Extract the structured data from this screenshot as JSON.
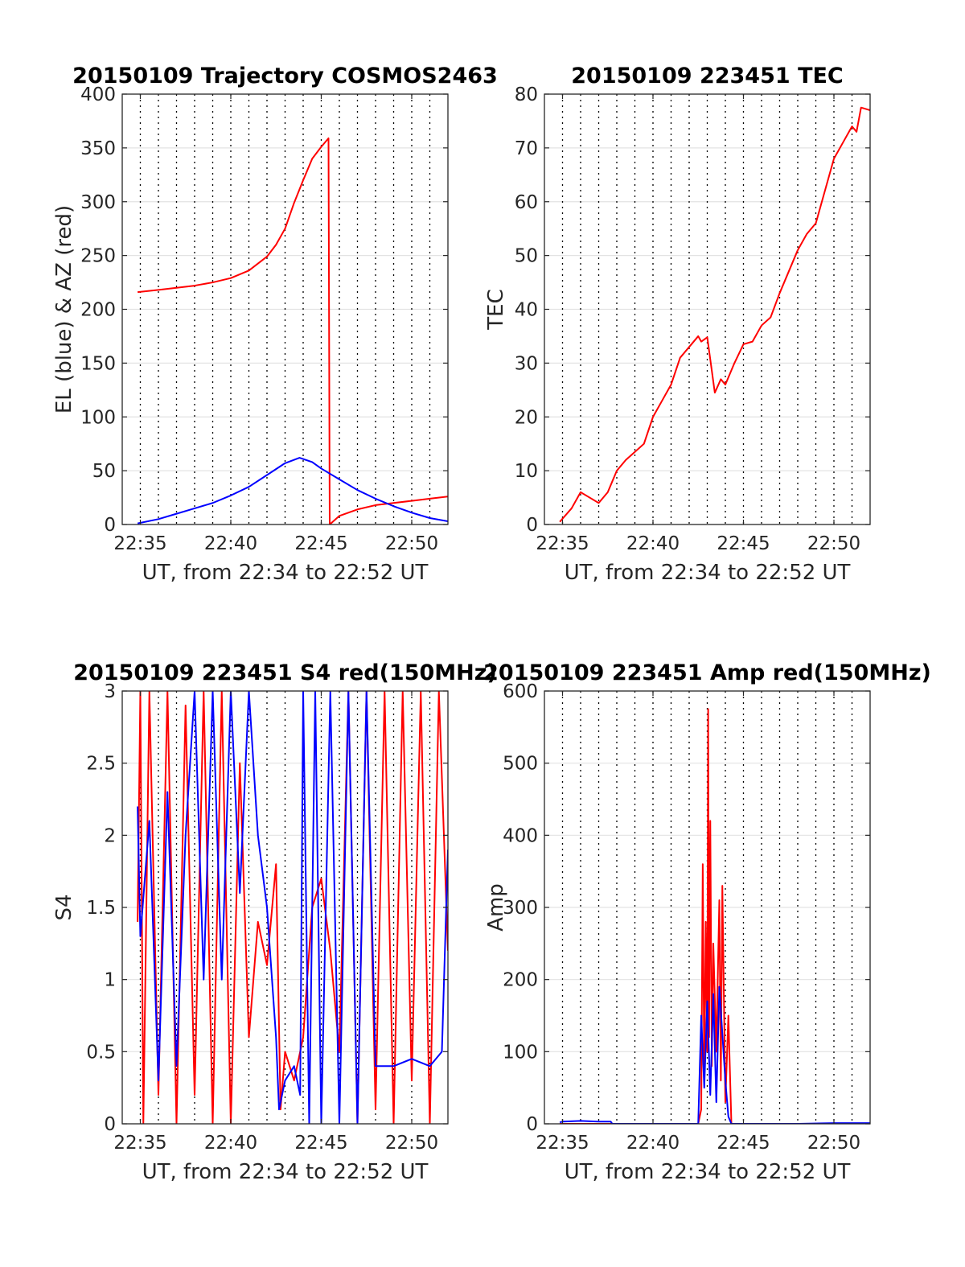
{
  "colors": {
    "red": "#ff0000",
    "blue": "#0000ff",
    "axis": "#262626",
    "grid": "#e3e3e3"
  },
  "chart_data": [
    {
      "type": "line",
      "title": "20150109 Trajectory COSMOS2463",
      "xlabel": "UT, from 22:34 to 22:52 UT",
      "ylabel": "EL (blue) & AZ (red)",
      "xlim": [
        "22:34",
        "22:52"
      ],
      "ylim": [
        0,
        400
      ],
      "xticks": [
        "22:35",
        "22:40",
        "22:45",
        "22:50"
      ],
      "yticks": [
        0,
        50,
        100,
        150,
        200,
        250,
        300,
        350,
        400
      ],
      "grid": true,
      "series": [
        {
          "color": "#ff0000",
          "points": [
            [
              "22:34:51",
              216
            ],
            [
              "22:36",
              218
            ],
            [
              "22:37",
              220
            ],
            [
              "22:38",
              222
            ],
            [
              "22:39",
              225
            ],
            [
              "22:40",
              229
            ],
            [
              "22:41",
              236
            ],
            [
              "22:42",
              249
            ],
            [
              "22:42:30",
              260
            ],
            [
              "22:43",
              275
            ],
            [
              "22:43:30",
              299
            ],
            [
              "22:44",
              320
            ],
            [
              "22:44:30",
              340
            ],
            [
              "22:45",
              351
            ],
            [
              "22:45:24",
              359
            ],
            [
              "22:45:28",
              0
            ],
            [
              "22:46",
              8
            ],
            [
              "22:47",
              14
            ],
            [
              "22:48",
              18
            ],
            [
              "22:49",
              20
            ],
            [
              "22:50",
              22
            ],
            [
              "22:51",
              24
            ],
            [
              "22:52",
              26
            ]
          ]
        },
        {
          "color": "#0000ff",
          "points": [
            [
              "22:34:51",
              1
            ],
            [
              "22:36",
              5
            ],
            [
              "22:37",
              10
            ],
            [
              "22:38",
              15
            ],
            [
              "22:39",
              20
            ],
            [
              "22:40",
              27
            ],
            [
              "22:41",
              35
            ],
            [
              "22:42",
              46
            ],
            [
              "22:43",
              57
            ],
            [
              "22:43:48",
              62
            ],
            [
              "22:44:30",
              58
            ],
            [
              "22:45",
              52
            ],
            [
              "22:46",
              42
            ],
            [
              "22:47",
              32
            ],
            [
              "22:48",
              24
            ],
            [
              "22:49",
              17
            ],
            [
              "22:50",
              11
            ],
            [
              "22:51",
              6
            ],
            [
              "22:52",
              3
            ]
          ]
        }
      ]
    },
    {
      "type": "line",
      "title": "20150109 223451 TEC",
      "xlabel": "UT, from 22:34 to 22:52 UT",
      "ylabel": "TEC",
      "xlim": [
        "22:34",
        "22:52"
      ],
      "ylim": [
        0,
        80
      ],
      "xticks": [
        "22:35",
        "22:40",
        "22:45",
        "22:50"
      ],
      "yticks": [
        0,
        10,
        20,
        30,
        40,
        50,
        60,
        70,
        80
      ],
      "grid": true,
      "series": [
        {
          "color": "#ff0000",
          "points": [
            [
              "22:34:51",
              0.5
            ],
            [
              "22:35:30",
              3
            ],
            [
              "22:36",
              6
            ],
            [
              "22:36:30",
              5
            ],
            [
              "22:37",
              4
            ],
            [
              "22:37:30",
              6
            ],
            [
              "22:38",
              10
            ],
            [
              "22:38:30",
              12
            ],
            [
              "22:39",
              13.5
            ],
            [
              "22:39:30",
              15
            ],
            [
              "22:40",
              20
            ],
            [
              "22:40:30",
              23
            ],
            [
              "22:41",
              26
            ],
            [
              "22:41:30",
              31
            ],
            [
              "22:42",
              33
            ],
            [
              "22:42:30",
              35
            ],
            [
              "22:42:40",
              34
            ],
            [
              "22:43",
              34.8
            ],
            [
              "22:43:25",
              24.5
            ],
            [
              "22:43:45",
              27
            ],
            [
              "22:44",
              26
            ],
            [
              "22:44:30",
              30
            ],
            [
              "22:45",
              33.5
            ],
            [
              "22:45:30",
              34
            ],
            [
              "22:46",
              37
            ],
            [
              "22:46:30",
              38.5
            ],
            [
              "22:47",
              43
            ],
            [
              "22:47:30",
              47
            ],
            [
              "22:48",
              51
            ],
            [
              "22:48:30",
              54
            ],
            [
              "22:49",
              56
            ],
            [
              "22:49:30",
              62
            ],
            [
              "22:50",
              68
            ],
            [
              "22:50:30",
              71
            ],
            [
              "22:51",
              74
            ],
            [
              "22:51:15",
              73
            ],
            [
              "22:51:30",
              77.5
            ],
            [
              "22:52",
              77
            ]
          ]
        }
      ]
    },
    {
      "type": "line",
      "title": "20150109 223451 S4 red(150MHz)",
      "xlabel": "UT, from 22:34 to 22:52 UT",
      "ylabel": "S4",
      "xlim": [
        "22:34",
        "22:52"
      ],
      "ylim": [
        0,
        3
      ],
      "xticks": [
        "22:35",
        "22:40",
        "22:45",
        "22:50"
      ],
      "yticks": [
        0,
        0.5,
        1,
        1.5,
        2,
        2.5,
        3
      ],
      "grid": true,
      "series": [
        {
          "color": "#ff0000",
          "points": [
            [
              "22:34:51",
              1.4
            ],
            [
              "22:35:00",
              3
            ],
            [
              "22:35:10",
              0
            ],
            [
              "22:35:30",
              3
            ],
            [
              "22:36:00",
              0.2
            ],
            [
              "22:36:30",
              3
            ],
            [
              "22:37:00",
              0
            ],
            [
              "22:37:30",
              2.9
            ],
            [
              "22:38:00",
              0.2
            ],
            [
              "22:38:30",
              3
            ],
            [
              "22:39:00",
              0
            ],
            [
              "22:39:30",
              3
            ],
            [
              "22:40:00",
              0
            ],
            [
              "22:40:30",
              2.5
            ],
            [
              "22:41:00",
              0.6
            ],
            [
              "22:41:30",
              1.4
            ],
            [
              "22:42:00",
              1.1
            ],
            [
              "22:42:30",
              1.8
            ],
            [
              "22:42:45",
              0.1
            ],
            [
              "22:43:00",
              0.5
            ],
            [
              "22:43:30",
              0.3
            ],
            [
              "22:44:00",
              0.6
            ],
            [
              "22:44:30",
              1.5
            ],
            [
              "22:45:00",
              1.7
            ],
            [
              "22:45:30",
              1.2
            ],
            [
              "22:46:00",
              0.5
            ],
            [
              "22:46:30",
              3
            ],
            [
              "22:47:00",
              0
            ],
            [
              "22:47:30",
              3
            ],
            [
              "22:48:00",
              0.1
            ],
            [
              "22:48:30",
              3
            ],
            [
              "22:49:00",
              0
            ],
            [
              "22:49:30",
              3
            ],
            [
              "22:50:00",
              0.3
            ],
            [
              "22:50:30",
              3
            ],
            [
              "22:51:00",
              0
            ],
            [
              "22:51:30",
              3
            ],
            [
              "22:52:00",
              1.2
            ]
          ]
        },
        {
          "color": "#0000ff",
          "points": [
            [
              "22:34:51",
              2.2
            ],
            [
              "22:35:00",
              1.3
            ],
            [
              "22:35:30",
              2.1
            ],
            [
              "22:36:00",
              0.3
            ],
            [
              "22:36:30",
              2.3
            ],
            [
              "22:37:00",
              0.4
            ],
            [
              "22:37:30",
              2.0
            ],
            [
              "22:38:00",
              3
            ],
            [
              "22:38:30",
              1.0
            ],
            [
              "22:39:00",
              3
            ],
            [
              "22:39:30",
              1.0
            ],
            [
              "22:40:00",
              3
            ],
            [
              "22:40:30",
              1.6
            ],
            [
              "22:41:00",
              3
            ],
            [
              "22:41:30",
              2.0
            ],
            [
              "22:42:00",
              1.5
            ],
            [
              "22:42:30",
              0.6
            ],
            [
              "22:42:40",
              0.1
            ],
            [
              "22:43:00",
              0.3
            ],
            [
              "22:43:30",
              0.4
            ],
            [
              "22:43:50",
              0.2
            ],
            [
              "22:44:00",
              3
            ],
            [
              "22:44:20",
              0
            ],
            [
              "22:44:40",
              3
            ],
            [
              "22:45:00",
              0
            ],
            [
              "22:45:30",
              3
            ],
            [
              "22:46:00",
              0
            ],
            [
              "22:46:30",
              3
            ],
            [
              "22:47:00",
              0
            ],
            [
              "22:47:30",
              3
            ],
            [
              "22:48:00",
              0.4
            ],
            [
              "22:49:00",
              0.4
            ],
            [
              "22:50:00",
              0.45
            ],
            [
              "22:51:00",
              0.4
            ],
            [
              "22:51:40",
              0.5
            ],
            [
              "22:52:00",
              1.9
            ]
          ]
        }
      ]
    },
    {
      "type": "line",
      "title": "20150109 223451 Amp red(150MHz)",
      "xlabel": "UT, from 22:34 to 22:52 UT",
      "ylabel": "Amp",
      "xlim": [
        "22:34",
        "22:52"
      ],
      "ylim": [
        0,
        600
      ],
      "xticks": [
        "22:35",
        "22:40",
        "22:45",
        "22:50"
      ],
      "yticks": [
        0,
        100,
        200,
        300,
        400,
        500,
        600
      ],
      "grid": true,
      "series": [
        {
          "color": "#ff0000",
          "points": [
            [
              "22:34:51",
              0
            ],
            [
              "22:42:30",
              0
            ],
            [
              "22:42:40",
              20
            ],
            [
              "22:42:45",
              360
            ],
            [
              "22:42:50",
              60
            ],
            [
              "22:42:55",
              280
            ],
            [
              "22:43:00",
              100
            ],
            [
              "22:43:03",
              575
            ],
            [
              "22:43:06",
              120
            ],
            [
              "22:43:10",
              420
            ],
            [
              "22:43:15",
              80
            ],
            [
              "22:43:20",
              250
            ],
            [
              "22:43:30",
              100
            ],
            [
              "22:43:40",
              310
            ],
            [
              "22:43:45",
              60
            ],
            [
              "22:43:50",
              330
            ],
            [
              "22:44:00",
              30
            ],
            [
              "22:44:10",
              150
            ],
            [
              "22:44:20",
              0
            ],
            [
              "22:52:00",
              0
            ]
          ]
        },
        {
          "color": "#0000ff",
          "points": [
            [
              "22:34:51",
              2
            ],
            [
              "22:35:00",
              3
            ],
            [
              "22:36:00",
              4
            ],
            [
              "22:37:00",
              3
            ],
            [
              "22:37:40",
              3
            ],
            [
              "22:37:45",
              0
            ],
            [
              "22:42:30",
              0
            ],
            [
              "22:42:40",
              150
            ],
            [
              "22:42:50",
              50
            ],
            [
              "22:43:00",
              170
            ],
            [
              "22:43:10",
              40
            ],
            [
              "22:43:20",
              180
            ],
            [
              "22:43:30",
              30
            ],
            [
              "22:43:40",
              190
            ],
            [
              "22:44:00",
              60
            ],
            [
              "22:44:10",
              10
            ],
            [
              "22:44:20",
              0
            ],
            [
              "22:48:00",
              0
            ],
            [
              "22:50:00",
              1
            ],
            [
              "22:52:00",
              1
            ]
          ]
        }
      ]
    }
  ]
}
